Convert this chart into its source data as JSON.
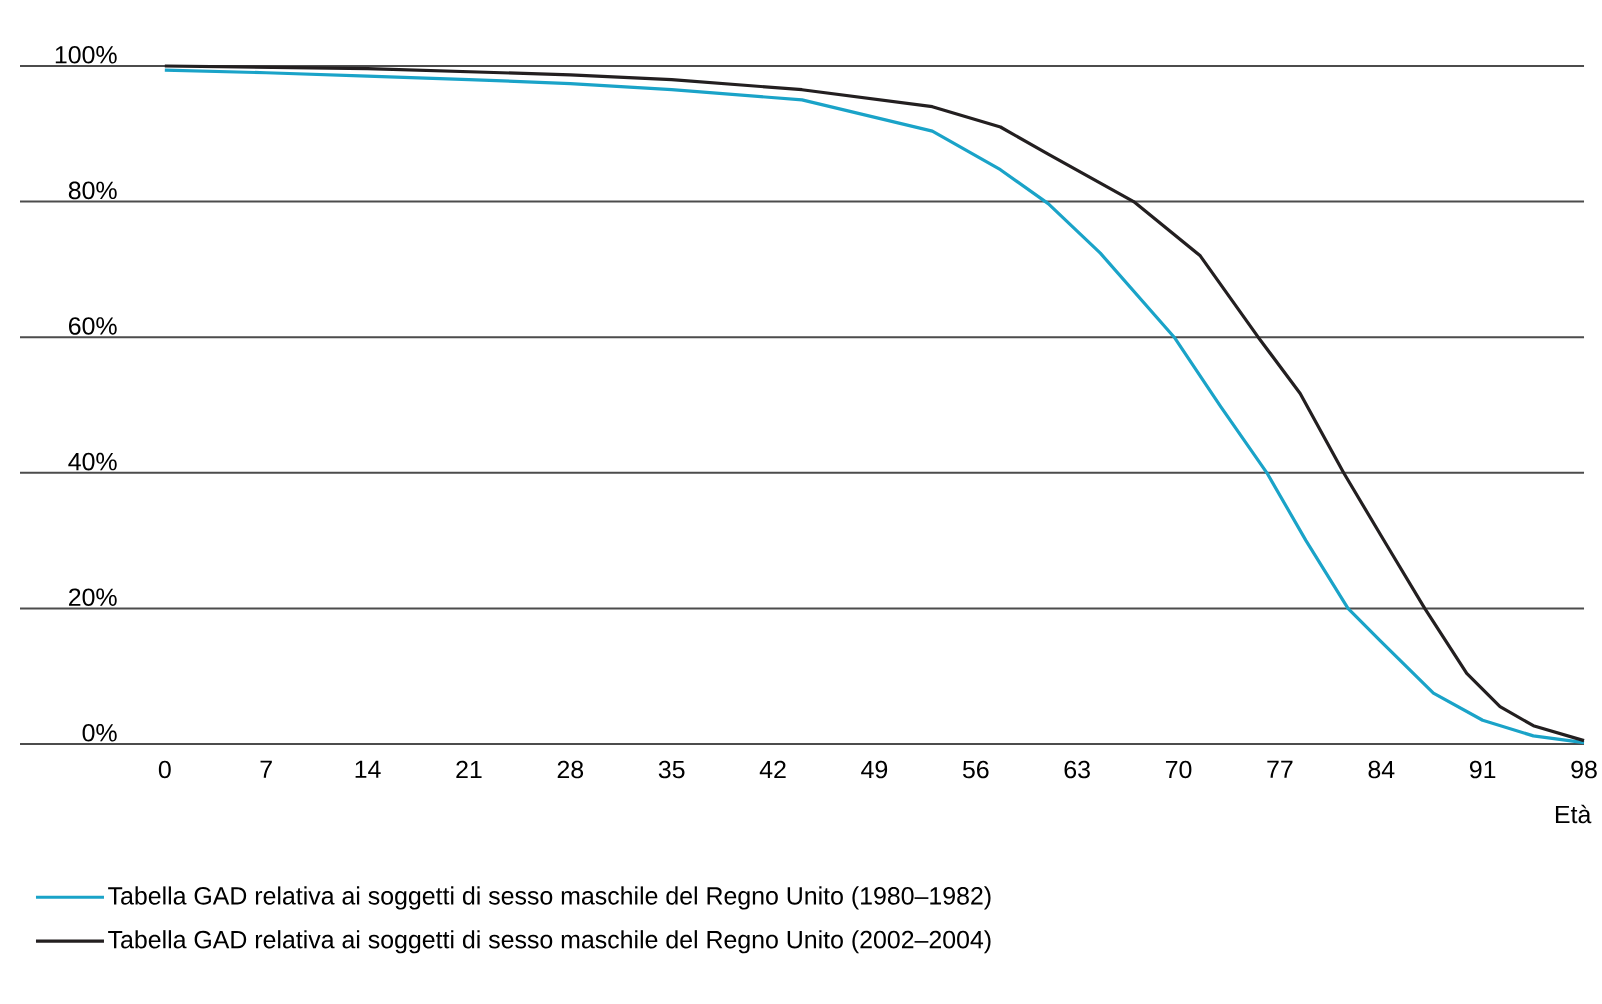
{
  "chart_data": {
    "type": "line",
    "xlabel": "Età",
    "xlim": [
      -10,
      98
    ],
    "xticks": [
      0,
      7,
      14,
      21,
      28,
      35,
      42,
      49,
      56,
      63,
      70,
      77,
      84,
      91,
      98
    ],
    "ylim": [
      0,
      100
    ],
    "yticks": [
      {
        "value": 0,
        "label": "0%"
      },
      {
        "value": 20,
        "label": "20%"
      },
      {
        "value": 40,
        "label": "40%"
      },
      {
        "value": 60,
        "label": "60%"
      },
      {
        "value": 80,
        "label": "80%"
      },
      {
        "value": 100,
        "label": "100%"
      }
    ],
    "grid": "y",
    "legend": "bottom",
    "line_style": "solid",
    "marker": "none",
    "series": [
      {
        "name": "Tabella GAD relativa ai soggetti di sesso maschile del Regno Unito (1980–1982)",
        "color": "#1aa3c8",
        "x": [
          0,
          7,
          14,
          21,
          28,
          35,
          44,
          53,
          57.7,
          61,
          64.6,
          69.7,
          72.9,
          76.1,
          78.8,
          81.7,
          83.9,
          87.6,
          91,
          94.5,
          98
        ],
        "values": [
          99.4,
          99,
          98.5,
          98,
          97.4,
          96.5,
          95,
          90.4,
          84.7,
          79.7,
          72.4,
          60,
          49.8,
          40,
          30,
          20,
          15.3,
          7.5,
          3.5,
          1.2,
          0.2
        ]
      },
      {
        "name": "Tabella GAD relativa ai soggetti di sesso maschile del Regno Unito (2002–2004)",
        "color": "#231f20",
        "x": [
          0,
          14,
          28,
          35,
          44,
          53,
          57.7,
          61,
          66.9,
          71.5,
          75.5,
          78.4,
          81.4,
          84.3,
          87,
          89.9,
          92.2,
          94.5,
          98
        ],
        "values": [
          100,
          99.6,
          98.7,
          98,
          96.5,
          94,
          91,
          87,
          80,
          72,
          60,
          51.7,
          40,
          29.6,
          20,
          10.4,
          5.5,
          2.7,
          0.5
        ]
      }
    ]
  }
}
